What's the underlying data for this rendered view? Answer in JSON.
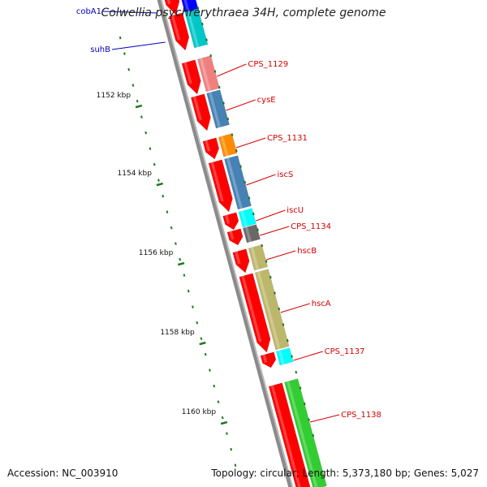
{
  "title": "Colwellia psychrerythraea 34H, complete genome",
  "footer": {
    "accession": "Accession: NC_003910",
    "summary": "Topology: circular; Length: 5,373,180 bp; Genes: 5,027"
  },
  "colors": {
    "backbone": "#8a8a8a",
    "cds_strand": "#ff0000",
    "tick": "#1a7a1a",
    "label_left": "#0000c0",
    "label_right": "#d40000"
  },
  "scale_labels": [
    "1152 kbp",
    "1154 kbp",
    "1156 kbp",
    "1158 kbp",
    "1160 kbp"
  ],
  "genes_left": [
    {
      "name": "cobA1",
      "color": "#0000ff"
    },
    {
      "name": "suhB",
      "color": "#00c8c8"
    }
  ],
  "genes_right": [
    {
      "name": "CPS_1129",
      "color": "#f08080"
    },
    {
      "name": "cysE",
      "color": "#4682b4"
    },
    {
      "name": "CPS_1131",
      "color": "#ff8c00"
    },
    {
      "name": "iscS",
      "color": "#4682b4"
    },
    {
      "name": "iscU",
      "color": "#00ffff"
    },
    {
      "name": "CPS_1134",
      "color": "#696969"
    },
    {
      "name": "hscB",
      "color": "#bdb76b"
    },
    {
      "name": "hscA",
      "color": "#bdb76b"
    },
    {
      "name": "CPS_1137",
      "color": "#00ffff"
    },
    {
      "name": "CPS_1138",
      "color": "#32cd32"
    }
  ]
}
